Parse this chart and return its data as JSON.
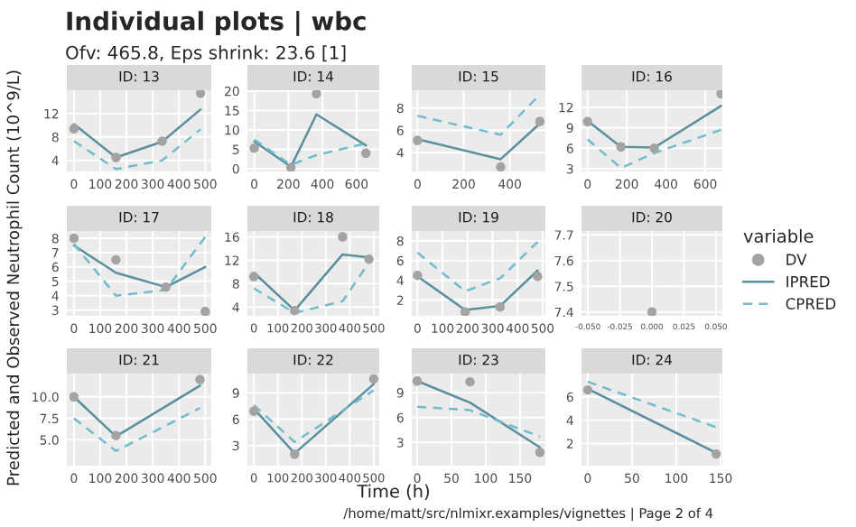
{
  "chart_data": [
    {
      "type": "line",
      "title": "ID: 13",
      "annotations": [
        "Individual plots | wbc",
        "Ofv: 465.8, Eps shrink: 23.6 [1]"
      ],
      "legend": "right",
      "legend_title": "variable",
      "grid": true,
      "xlim": [
        -27,
        523
      ],
      "xticks": [
        0,
        100,
        200,
        300,
        400,
        500
      ],
      "ylim": [
        2.1,
        16
      ],
      "yticks": [
        4,
        8,
        12
      ],
      "series": [
        {
          "name": "DV",
          "type": "scatter",
          "marker": "circle",
          "color": "#a3a3a3",
          "x": [
            0,
            160,
            336,
            482
          ],
          "values": [
            9.4,
            4.5,
            7.3,
            15.5
          ]
        },
        {
          "name": "IPRED",
          "line_style": "solid",
          "color": "#5b8f9e",
          "x": [
            0,
            160,
            336,
            482
          ],
          "values": [
            10.2,
            4.5,
            7.2,
            12.7
          ]
        },
        {
          "name": "CPRED",
          "line_style": "dashed",
          "color": "#6fbccc",
          "x": [
            0,
            160,
            336,
            482
          ],
          "values": [
            7.3,
            2.5,
            4.0,
            9.3
          ]
        }
      ]
    },
    {
      "type": "line",
      "title": "ID: 14",
      "grid": true,
      "xlim": [
        -40,
        733
      ],
      "xticks": [
        0,
        200,
        400,
        600
      ],
      "ylim": [
        -0.7,
        20.2
      ],
      "yticks": [
        0,
        5,
        10,
        15,
        20
      ],
      "series": [
        {
          "name": "DV",
          "type": "scatter",
          "marker": "circle",
          "color": "#a3a3a3",
          "x": [
            0,
            215,
            365,
            655
          ],
          "values": [
            5.3,
            0.3,
            19.3,
            4
          ]
        },
        {
          "name": "IPRED",
          "line_style": "solid",
          "color": "#5b8f9e",
          "x": [
            0,
            215,
            365,
            655
          ],
          "values": [
            7,
            0.5,
            14,
            6
          ]
        },
        {
          "name": "CPRED",
          "line_style": "dashed",
          "color": "#6fbccc",
          "x": [
            0,
            215,
            365,
            655
          ],
          "values": [
            7.5,
            1,
            3.5,
            6.5
          ]
        }
      ]
    },
    {
      "type": "line",
      "title": "ID: 15",
      "grid": true,
      "xlim": [
        -25,
        554
      ],
      "xticks": [
        0,
        200,
        400
      ],
      "ylim": [
        2.3,
        9.6
      ],
      "yticks": [
        4,
        6,
        8
      ],
      "series": [
        {
          "name": "DV",
          "type": "scatter",
          "marker": "circle",
          "color": "#a3a3a3",
          "x": [
            0,
            360,
            530
          ],
          "values": [
            5.1,
            2.7,
            6.8
          ]
        },
        {
          "name": "IPRED",
          "line_style": "solid",
          "color": "#5b8f9e",
          "x": [
            0,
            360,
            530
          ],
          "values": [
            5.2,
            3.4,
            6.6
          ]
        },
        {
          "name": "CPRED",
          "line_style": "dashed",
          "color": "#6fbccc",
          "x": [
            0,
            360,
            530
          ],
          "values": [
            7.3,
            5.6,
            9.2
          ]
        }
      ]
    },
    {
      "type": "line",
      "title": "ID: 16",
      "grid": true,
      "xlim": [
        -31,
        687
      ],
      "xticks": [
        0,
        200,
        400,
        600
      ],
      "ylim": [
        2.6,
        14.5
      ],
      "yticks": [
        3,
        6,
        9,
        12
      ],
      "series": [
        {
          "name": "DV",
          "type": "scatter",
          "marker": "circle",
          "color": "#a3a3a3",
          "x": [
            0,
            170,
            340,
            680
          ],
          "values": [
            9.9,
            6.2,
            6,
            14
          ]
        },
        {
          "name": "IPRED",
          "line_style": "solid",
          "color": "#5b8f9e",
          "x": [
            0,
            170,
            340,
            680
          ],
          "values": [
            10,
            6.2,
            6.1,
            12.2
          ]
        },
        {
          "name": "CPRED",
          "line_style": "dashed",
          "color": "#6fbccc",
          "x": [
            0,
            170,
            340,
            680
          ],
          "values": [
            7.3,
            3.1,
            5.3,
            8.7
          ]
        }
      ]
    },
    {
      "type": "line",
      "title": "ID: 17",
      "ylabel": "Predicted and Observed Neutrophil Count (10^9/L)",
      "grid": true,
      "xlim": [
        -27,
        523
      ],
      "xticks": [
        0,
        100,
        200,
        300,
        400,
        500
      ],
      "ylim": [
        2.6,
        8.5
      ],
      "yticks": [
        3,
        4,
        5,
        6,
        7,
        8
      ],
      "series": [
        {
          "name": "DV",
          "type": "scatter",
          "marker": "circle",
          "color": "#a3a3a3",
          "x": [
            0,
            160,
            350,
            500
          ],
          "values": [
            8,
            6.5,
            4.6,
            2.9
          ]
        },
        {
          "name": "IPRED",
          "line_style": "solid",
          "color": "#5b8f9e",
          "x": [
            0,
            160,
            350,
            500
          ],
          "values": [
            7.5,
            5.6,
            4.6,
            6
          ]
        },
        {
          "name": "CPRED",
          "line_style": "dashed",
          "color": "#6fbccc",
          "x": [
            0,
            160,
            350,
            500
          ],
          "values": [
            7.6,
            4,
            4.4,
            8.1
          ]
        }
      ]
    },
    {
      "type": "line",
      "title": "ID: 18",
      "grid": true,
      "xlim": [
        -27,
        523
      ],
      "xticks": [
        0,
        100,
        200,
        300,
        400,
        500
      ],
      "ylim": [
        2.5,
        17
      ],
      "yticks": [
        4,
        8,
        12,
        16
      ],
      "series": [
        {
          "name": "DV",
          "type": "scatter",
          "marker": "circle",
          "color": "#a3a3a3",
          "x": [
            0,
            170,
            370,
            480
          ],
          "values": [
            9.2,
            3.4,
            16,
            12.2
          ]
        },
        {
          "name": "IPRED",
          "line_style": "solid",
          "color": "#5b8f9e",
          "x": [
            0,
            170,
            370,
            480
          ],
          "values": [
            9.9,
            3.4,
            13,
            12.5
          ]
        },
        {
          "name": "CPRED",
          "line_style": "dashed",
          "color": "#6fbccc",
          "x": [
            0,
            170,
            370,
            480
          ],
          "values": [
            7.2,
            3,
            5,
            11.6
          ]
        }
      ]
    },
    {
      "type": "line",
      "title": "ID: 19",
      "grid": true,
      "xlim": [
        -23,
        511
      ],
      "xticks": [
        0,
        100,
        200,
        300,
        400,
        500
      ],
      "ylim": [
        0.4,
        9
      ],
      "yticks": [
        2,
        4,
        6,
        8
      ],
      "series": [
        {
          "name": "DV",
          "type": "scatter",
          "marker": "circle",
          "color": "#a3a3a3",
          "x": [
            0,
            190,
            330,
            480
          ],
          "values": [
            4.5,
            0.8,
            1.3,
            4.4
          ]
        },
        {
          "name": "IPRED",
          "line_style": "solid",
          "color": "#5b8f9e",
          "x": [
            0,
            190,
            330,
            480
          ],
          "values": [
            4.4,
            1.0,
            1.4,
            5.0
          ]
        },
        {
          "name": "CPRED",
          "line_style": "dashed",
          "color": "#6fbccc",
          "x": [
            0,
            190,
            330,
            480
          ],
          "values": [
            6.8,
            2.9,
            4.2,
            7.9
          ]
        }
      ]
    },
    {
      "type": "line",
      "title": "ID: 20",
      "grid": true,
      "xlim": [
        -0.055,
        0.055
      ],
      "xticks": [
        {
          "value": -0.05,
          "label": "-0.050"
        },
        {
          "value": -0.025,
          "label": "-0.025"
        },
        {
          "value": 0,
          "label": "0.000"
        },
        {
          "value": 0.025,
          "label": "0.025"
        },
        {
          "value": 0.05,
          "label": "0.050"
        }
      ],
      "ylim": [
        7.385,
        7.715
      ],
      "yticks": [
        7.4,
        7.5,
        7.6,
        7.7
      ],
      "series": [
        {
          "name": "DV",
          "type": "scatter",
          "marker": "circle",
          "color": "#a3a3a3",
          "x": [
            0
          ],
          "values": [
            7.4
          ]
        }
      ]
    },
    {
      "type": "line",
      "title": "ID: 21",
      "grid": true,
      "xlim": [
        -27,
        523
      ],
      "xticks": [
        0,
        100,
        200,
        300,
        400,
        500
      ],
      "ylim": [
        2,
        12.7
      ],
      "yticks": [
        {
          "value": 5,
          "label": "5.0"
        },
        {
          "value": 7.5,
          "label": "7.5"
        },
        {
          "value": 10,
          "label": "10.0"
        }
      ],
      "series": [
        {
          "name": "DV",
          "type": "scatter",
          "marker": "circle",
          "color": "#a3a3a3",
          "x": [
            0,
            160,
            480
          ],
          "values": [
            10,
            5.5,
            12
          ]
        },
        {
          "name": "IPRED",
          "line_style": "solid",
          "color": "#5b8f9e",
          "x": [
            0,
            160,
            480
          ],
          "values": [
            10,
            5.4,
            11.3
          ]
        },
        {
          "name": "CPRED",
          "line_style": "dashed",
          "color": "#6fbccc",
          "x": [
            0,
            160,
            480
          ],
          "values": [
            7.5,
            3.7,
            8.7
          ]
        }
      ]
    },
    {
      "type": "line",
      "title": "ID: 22",
      "grid": true,
      "xlim": [
        -27,
        523
      ],
      "xticks": [
        0,
        100,
        200,
        300,
        400,
        500
      ],
      "ylim": [
        0.7,
        11.2
      ],
      "yticks": [
        3,
        6,
        9
      ],
      "series": [
        {
          "name": "DV",
          "type": "scatter",
          "marker": "circle",
          "color": "#a3a3a3",
          "x": [
            0,
            170,
            500
          ],
          "values": [
            6.9,
            2,
            10.6
          ]
        },
        {
          "name": "IPRED",
          "line_style": "solid",
          "color": "#5b8f9e",
          "x": [
            0,
            170,
            500
          ],
          "values": [
            7.2,
            2.1,
            10
          ]
        },
        {
          "name": "CPRED",
          "line_style": "dashed",
          "color": "#6fbccc",
          "x": [
            0,
            170,
            500
          ],
          "values": [
            7.6,
            3.4,
            9.3
          ]
        }
      ]
    },
    {
      "type": "line",
      "title": "ID: 23",
      "xlabel": "Time (h)",
      "annotations": [
        "/home/matt/src/nlmixr.examples/vignettes | Page 2 of 4"
      ],
      "grid": true,
      "xlim": [
        -8,
        187
      ],
      "xticks": [
        0,
        50,
        100,
        150
      ],
      "ylim": [
        0.2,
        11.3
      ],
      "yticks": [
        3,
        6,
        9
      ],
      "series": [
        {
          "name": "DV",
          "type": "scatter",
          "marker": "circle",
          "color": "#a3a3a3",
          "x": [
            0,
            77,
            179
          ],
          "values": [
            10.4,
            10.3,
            1.8
          ]
        },
        {
          "name": "IPRED",
          "line_style": "solid",
          "color": "#5b8f9e",
          "x": [
            0,
            77,
            179
          ],
          "values": [
            10.4,
            7.8,
            2.4
          ]
        },
        {
          "name": "CPRED",
          "line_style": "dashed",
          "color": "#6fbccc",
          "x": [
            0,
            77,
            179
          ],
          "values": [
            7.3,
            6.9,
            3.7
          ]
        }
      ]
    },
    {
      "type": "line",
      "title": "ID: 24",
      "grid": true,
      "xlim": [
        -7,
        152
      ],
      "xticks": [
        0,
        50,
        100,
        150
      ],
      "ylim": [
        0.1,
        8
      ],
      "yticks": [
        2,
        4,
        6
      ],
      "series": [
        {
          "name": "DV",
          "type": "scatter",
          "marker": "circle",
          "color": "#a3a3a3",
          "x": [
            0,
            145
          ],
          "values": [
            6.6,
            1.1
          ]
        },
        {
          "name": "IPRED",
          "line_style": "solid",
          "color": "#5b8f9e",
          "x": [
            0,
            145
          ],
          "values": [
            6.7,
            1.2
          ]
        },
        {
          "name": "CPRED",
          "line_style": "dashed",
          "color": "#6fbccc",
          "x": [
            0,
            145
          ],
          "values": [
            7.3,
            3.4
          ]
        }
      ]
    }
  ]
}
